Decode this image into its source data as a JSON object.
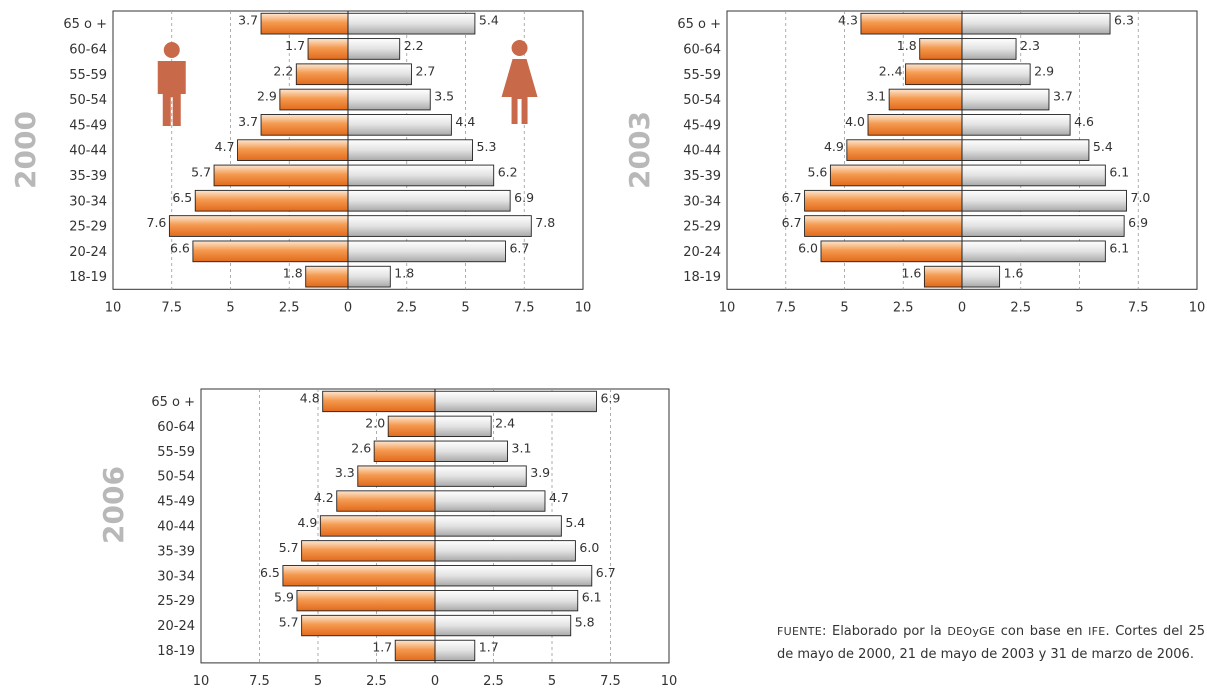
{
  "legend_icons": {
    "left": "male-figure-icon",
    "right": "female-figure-icon",
    "color": "#c8694a"
  },
  "colors": {
    "left_light": "#fde7d2",
    "left_mid": "#f49a50",
    "left_dark": "#e26a1c",
    "right_light": "#ffffff",
    "right_mid": "#e2e2e2",
    "right_dark": "#a9a9a9"
  },
  "chart_data": [
    {
      "type": "bar",
      "title": "2000",
      "categories": [
        "65 o +",
        "60-64",
        "55-59",
        "50-54",
        "45-49",
        "40-44",
        "35-39",
        "30-34",
        "25-29",
        "20-24",
        "18-19"
      ],
      "series": [
        {
          "values": [
            3.7,
            1.7,
            2.2,
            2.9,
            3.7,
            4.7,
            5.7,
            6.5,
            7.6,
            6.6,
            1.8
          ],
          "labels": [
            "3.7",
            "1.7",
            "2.2",
            "2.9",
            "3.7",
            "4.7",
            "5.7",
            "6.5",
            "7.6",
            "6.6",
            "1.8"
          ]
        },
        {
          "values": [
            5.4,
            2.2,
            2.7,
            3.5,
            4.4,
            5.3,
            6.2,
            6.9,
            7.8,
            6.7,
            1.8
          ],
          "labels": [
            "5.4",
            "2.2",
            "2.7",
            "3.5",
            "4.4",
            "5.3",
            "6.2",
            "6.9",
            "7.8",
            "6.7",
            "1.8"
          ]
        }
      ],
      "xlim": [
        -10,
        10
      ],
      "xticks": [
        "10",
        "7.5",
        "5",
        "2.5",
        "0",
        "2.5",
        "5",
        "7.5",
        "10"
      ],
      "grid": "dashed vertical",
      "show_icons": true
    },
    {
      "type": "bar",
      "title": "2003",
      "categories": [
        "65 o +",
        "60-64",
        "55-59",
        "50-54",
        "45-49",
        "40-44",
        "35-39",
        "30-34",
        "25-29",
        "20-24",
        "18-19"
      ],
      "series": [
        {
          "values": [
            4.3,
            1.8,
            2.4,
            3.1,
            4.0,
            4.9,
            5.6,
            6.7,
            6.7,
            6.0,
            1.6
          ],
          "labels": [
            "4.3",
            "1.8",
            "2..4",
            "3.1",
            "4.0",
            "4.9",
            "5.6",
            "6.7",
            "6.7",
            "6.0",
            "1.6"
          ]
        },
        {
          "values": [
            6.3,
            2.3,
            2.9,
            3.7,
            4.6,
            5.4,
            6.1,
            7.0,
            6.9,
            6.1,
            1.6
          ],
          "labels": [
            "6.3",
            "2.3",
            "2.9",
            "3.7",
            "4.6",
            "5.4",
            "6.1",
            "7.0",
            "6.9",
            "6.1",
            "1.6"
          ]
        }
      ],
      "xlim": [
        -10,
        10
      ],
      "xticks": [
        "10",
        "7.5",
        "5",
        "2.5",
        "0",
        "2.5",
        "5",
        "7.5",
        "10"
      ],
      "grid": "dashed vertical",
      "show_icons": false
    },
    {
      "type": "bar",
      "title": "2006",
      "categories": [
        "65 o +",
        "60-64",
        "55-59",
        "50-54",
        "45-49",
        "40-44",
        "35-39",
        "30-34",
        "25-29",
        "20-24",
        "18-19"
      ],
      "series": [
        {
          "values": [
            4.8,
            2.0,
            2.6,
            3.3,
            4.2,
            4.9,
            5.7,
            6.5,
            5.9,
            5.7,
            1.7
          ],
          "labels": [
            "4.8",
            "2.0",
            "2.6",
            "3.3",
            "4.2",
            "4.9",
            "5.7",
            "6.5",
            "5.9",
            "5.7",
            "1.7"
          ]
        },
        {
          "values": [
            6.9,
            2.4,
            3.1,
            3.9,
            4.7,
            5.4,
            6.0,
            6.7,
            6.1,
            5.8,
            1.7
          ],
          "labels": [
            "6.9",
            "2.4",
            "3.1",
            "3.9",
            "4.7",
            "5.4",
            "6.0",
            "6.7",
            "6.1",
            "5.8",
            "1.7"
          ]
        }
      ],
      "xlim": [
        -10,
        10
      ],
      "xticks": [
        "10",
        "7.5",
        "5",
        "2.5",
        "0",
        "2.5",
        "5",
        "7.5",
        "10"
      ],
      "grid": "dashed vertical",
      "show_icons": false
    }
  ],
  "source": {
    "label": "Fuente",
    "text_1": ": Elaborado por la ",
    "org": "DEOyGE",
    "text_2": " con base en ",
    "org2": "IFE",
    "text_3": ". Cortes del 25 de mayo de 2000, 21 de mayo de 2003 y 31 de marzo de 2006."
  }
}
